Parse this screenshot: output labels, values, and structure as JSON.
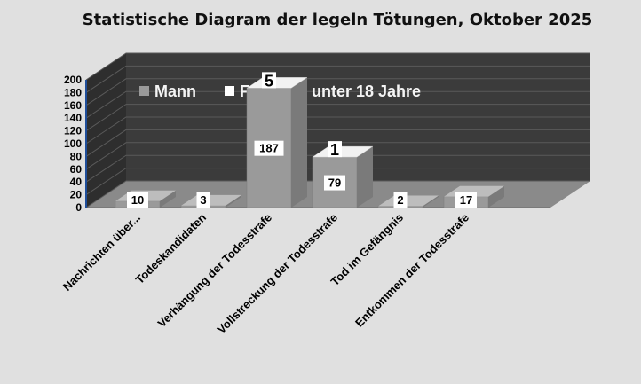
{
  "chart_data": {
    "type": "bar",
    "title": "Statistische Diagram der legeln Tötungen, Oktober 2025",
    "categories": [
      "Nachrichten über...",
      "Todeskandidaten",
      "Verhängung der Todesstrafe",
      "Vollstreckung der Todesstrafe",
      "Tod im Gefängnis",
      "Entkommen der Todesstrafe"
    ],
    "series": [
      {
        "name": "Mann",
        "values": [
          10,
          3,
          187,
          79,
          2,
          17
        ]
      },
      {
        "name": "Frau",
        "values": [
          null,
          null,
          5,
          1,
          null,
          null
        ]
      },
      {
        "name": "unter 18 Jahre",
        "values": [
          null,
          null,
          null,
          null,
          null,
          null
        ]
      }
    ],
    "yticks": [
      "0",
      "20",
      "40",
      "60",
      "80",
      "100",
      "120",
      "140",
      "160",
      "180",
      "200"
    ],
    "ylim": [
      0,
      200
    ],
    "grid": true,
    "legend_position": "top-left inside plot"
  }
}
